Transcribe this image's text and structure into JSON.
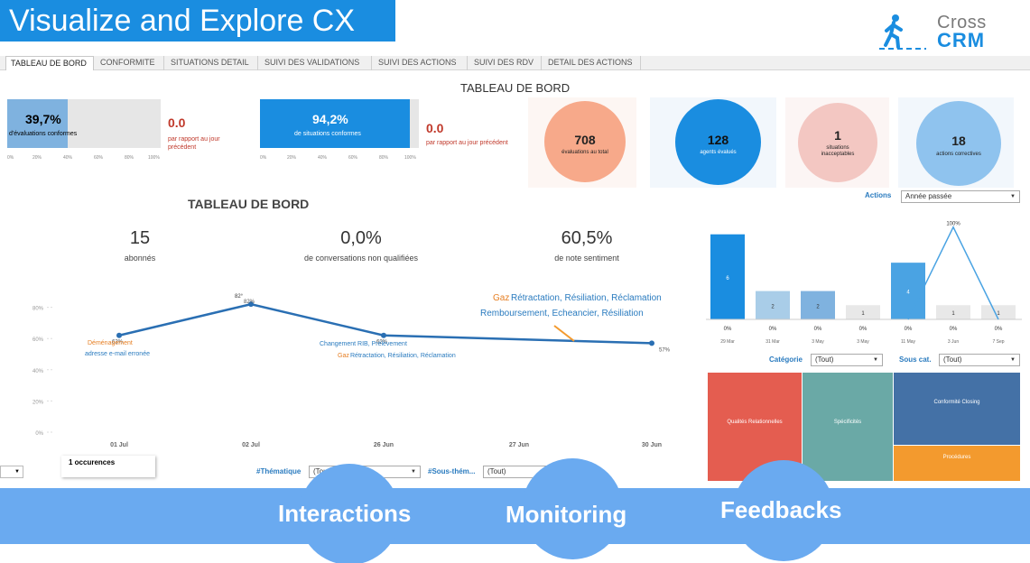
{
  "header": {
    "title": "Visualize and Explore CX",
    "logo_top": "Cross",
    "logo_bottom": "CRM"
  },
  "tabs": [
    {
      "label": "TABLEAU DE BORD",
      "active": true
    },
    {
      "label": "CONFORMITE"
    },
    {
      "label": "SITUATIONS DETAIL"
    },
    {
      "label": "SUIVI DES VALIDATIONS"
    },
    {
      "label": "SUIVI DES ACTIONS"
    },
    {
      "label": "SUIVI DES RDV"
    },
    {
      "label": "DETAIL DES ACTIONS"
    }
  ],
  "top_title": "TABLEAU DE BORD",
  "kpis": {
    "conformes": {
      "value": "39,7%",
      "label": "d'évaluations conformes",
      "fill_pct": 39.7,
      "ticks": [
        "0%",
        "20%",
        "40%",
        "60%",
        "80%",
        "100%"
      ],
      "delta": "0.0",
      "delta_label": "par rapport au jour précédent",
      "color": "#7fb2df"
    },
    "situations": {
      "value": "94,2%",
      "label": "de situations conformes",
      "fill_pct": 94.2,
      "ticks": [
        "0%",
        "20%",
        "40%",
        "60%",
        "80%",
        "100%"
      ],
      "delta": "0.0",
      "delta_label": "par rapport au jour précédent",
      "color": "#1a8de0"
    }
  },
  "circles": [
    {
      "value": "708",
      "label": "évaluations au total",
      "color": "#f7a98a",
      "bg": "#fbe6dd",
      "icon": "clipboard-check-icon"
    },
    {
      "value": "128",
      "label": "agents évalués",
      "color": "#1a8de0",
      "bg": "#e8f2fb",
      "icon": "headset-icon"
    },
    {
      "value": "1",
      "label": "situations inacceptables",
      "color": "#f3c7c2",
      "bg": "#fbecea",
      "icon": "thumbs-down-icon"
    },
    {
      "value": "18",
      "label": "actions correctives",
      "color": "#8fc3ee",
      "bg": "#e6f1fb",
      "icon": "trend-chart-icon"
    }
  ],
  "main": {
    "title": "TABLEAU DE BORD",
    "stats": [
      {
        "value": "15",
        "label": "abonnés"
      },
      {
        "value": "0,0%",
        "label": "de conversations non qualifiées"
      },
      {
        "value": "60,5%",
        "label": "de note sentiment"
      }
    ],
    "occurences": "1 occurences",
    "thematique_label": "#Thématique",
    "thematique_value": "(Tout)",
    "sous_theme_label": "#Sous-thém...",
    "sous_theme_value": "(Tout)"
  },
  "line_chart": {
    "type": "line",
    "x": [
      "01 Jul",
      "02 Jul",
      "26 Jun",
      "27 Jun",
      "30 Jun"
    ],
    "y_ticks": [
      "80%",
      "60%",
      "40%",
      "20%",
      "0%"
    ],
    "ylim": [
      0,
      100
    ],
    "points": [
      {
        "x": "01 Jul",
        "y": 62,
        "label": "62%"
      },
      {
        "x": "02 Jul",
        "y": 82,
        "label": "82%"
      },
      {
        "x": "26 Jun",
        "y": 62,
        "label": "62%"
      },
      {
        "x": "30 Jun",
        "y": 57,
        "label": "57%"
      }
    ],
    "annotations": [
      {
        "key": "a1",
        "text": "Déménagement",
        "color": "#e67e22"
      },
      {
        "key": "a2",
        "text": "adresse e-mail erronée",
        "color": "#2a7bbf"
      },
      {
        "key": "a3",
        "text": "Changement RIB, Prélèvement",
        "color": "#2a7bbf"
      },
      {
        "key": "a4a",
        "text": "Gaz",
        "color": "#e67e22"
      },
      {
        "key": "a4b",
        "text": "Rétractation, Résiliation, Réclamation",
        "color": "#2a7bbf"
      },
      {
        "key": "a5a",
        "text": "Gaz",
        "color": "#e67e22"
      },
      {
        "key": "a5b",
        "text": "Rétractation, Résiliation, Réclamation",
        "color": "#2a7bbf"
      },
      {
        "key": "a6",
        "text": "Remboursement, Echeancier, Résiliation",
        "color": "#2a7bbf"
      },
      {
        "key": "a7",
        "text": "82°",
        "color": "#333"
      }
    ]
  },
  "actions_panel": {
    "label": "Actions",
    "filter": "Année passée"
  },
  "chart_data": {
    "type": "bar",
    "categories": [
      "29 Mar",
      "31 Mar",
      "3 May",
      "3 May",
      "11 May",
      "3 Jun",
      "7 Sep"
    ],
    "values": [
      6,
      2,
      2,
      1,
      4,
      1,
      1
    ],
    "pct_labels": [
      "0%",
      "0%",
      "0%",
      "0%",
      "0%",
      "0%",
      "0%"
    ],
    "bar_colors": [
      "#1a8de0",
      "#a9cde8",
      "#7fb2df",
      "#e8e8e8",
      "#4aa3e3",
      "#e8e8e8",
      "#e8e8e8"
    ],
    "overlay_line": {
      "values": [
        0,
        0,
        0,
        0,
        0,
        100,
        0
      ],
      "top_label": "100%"
    },
    "ylim": [
      0,
      7
    ]
  },
  "categorie": {
    "label": "Catégorie",
    "value": "(Tout)",
    "sous_label": "Sous cat.",
    "sous_value": "(Tout)"
  },
  "treemap": [
    {
      "label": "Qualités Relationnelles",
      "color": "#e45d50"
    },
    {
      "label": "Spécificités",
      "color": "#6aa9a6"
    },
    {
      "label": "Conformité Closing",
      "color": "#4471a6"
    },
    {
      "label": "Procédures",
      "color": "#f39a2e"
    }
  ],
  "left_dropdown": "",
  "band": {
    "labels": [
      "Interactions",
      "Monitoring",
      "Feedbacks"
    ],
    "color": "#6aaaf0"
  }
}
